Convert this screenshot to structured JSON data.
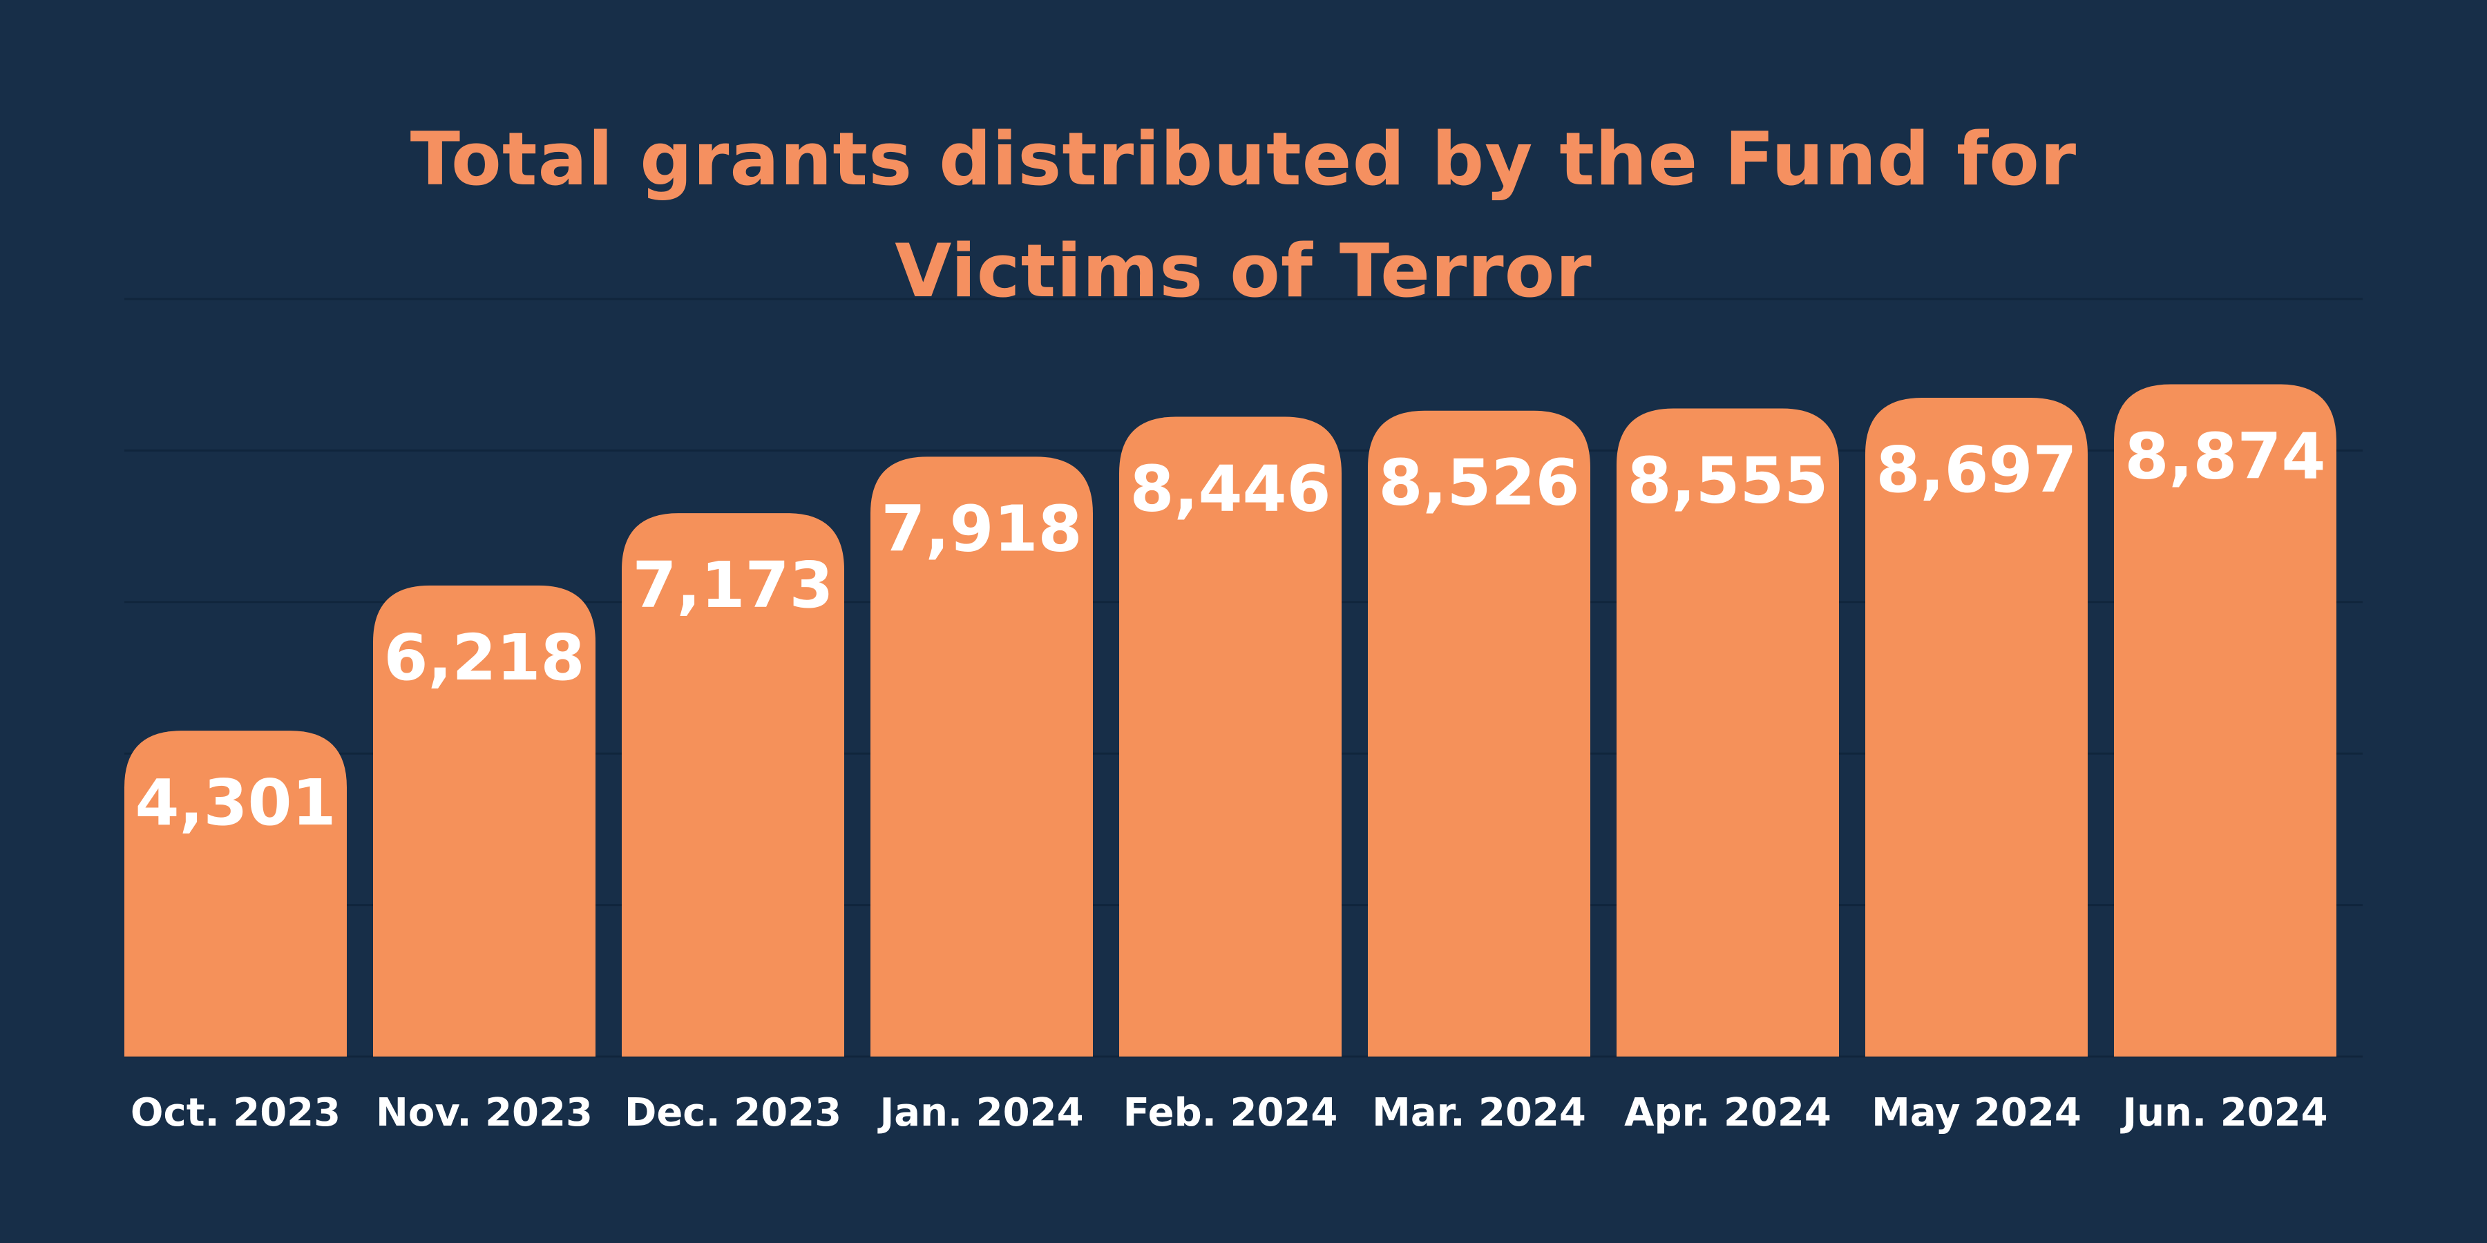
{
  "colors": {
    "background": "#172e48",
    "accent": "#f59060",
    "bar": "#f5915a",
    "gridline": "#10253c",
    "label": "#ffffff"
  },
  "chart_data": {
    "type": "bar",
    "title_lines": [
      "Total grants distributed by the Fund for",
      "Victims of Terror"
    ],
    "categories": [
      "Oct. 2023",
      "Nov. 2023",
      "Dec. 2023",
      "Jan. 2024",
      "Feb. 2024",
      "Mar. 2024",
      "Apr. 2024",
      "May 2024",
      "Jun. 2024"
    ],
    "values": [
      4301,
      6218,
      7173,
      7918,
      8446,
      8526,
      8555,
      8697,
      8874
    ],
    "value_labels": [
      "4,301",
      "6,218",
      "7,173",
      "7,918",
      "8,446",
      "8,526",
      "8,555",
      "8,697",
      "8,874"
    ],
    "ylim": [
      0,
      10000
    ],
    "gridlines": [
      0,
      2000,
      4000,
      6000,
      8000,
      10000
    ],
    "grid": true,
    "legend": "none",
    "xlabel": "",
    "ylabel": ""
  }
}
